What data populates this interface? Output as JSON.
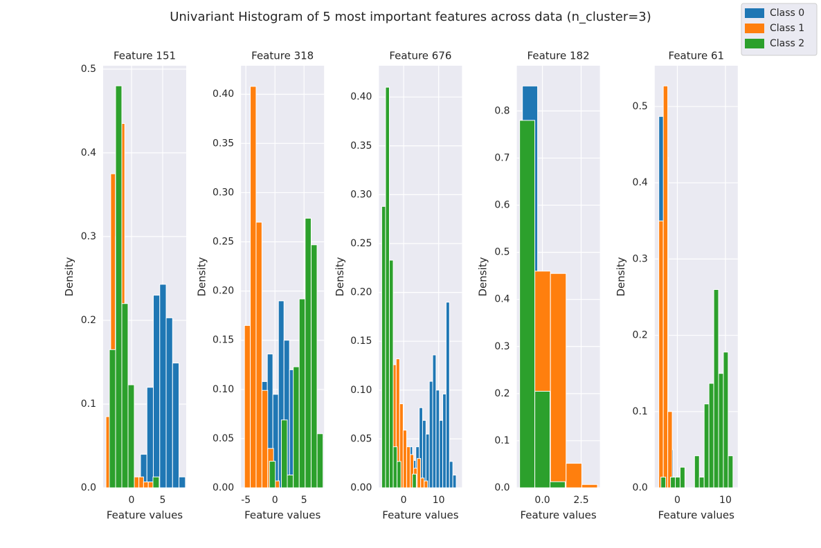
{
  "title": "Univariant Histogram of 5 most important features across data (n_cluster=3)",
  "chart_data": [
    {
      "type": "histogram",
      "title": "Feature 151",
      "xlabel": "Feature values",
      "ylabel": "Density",
      "xlim": [
        -4.56,
        8.78
      ],
      "ylim": [
        0,
        0.504
      ],
      "xticks": [
        0,
        5
      ],
      "yticks": [
        {
          "value": 0,
          "label": "0.0"
        },
        0.1,
        0.2,
        0.3,
        0.4,
        0.5
      ],
      "grid": true,
      "series": [
        {
          "name": "Class 0",
          "color": "#1f77b4",
          "bins": [
            1.44,
            2.47,
            3.5,
            4.53,
            5.56,
            6.59,
            7.62,
            8.65
          ],
          "values": [
            0.04,
            0.12,
            0.23,
            0.243,
            0.203,
            0.149,
            0.013
          ]
        },
        {
          "name": "Class 1",
          "color": "#ff7f0e",
          "bins": [
            -4.11,
            -3.35,
            -2.6,
            -1.84,
            -1.09,
            -0.33,
            0.42,
            1.18,
            1.93,
            2.69,
            3.44
          ],
          "values": [
            0.085,
            0.375,
            0.3,
            0.435,
            0.1,
            0,
            0.013,
            0.013,
            0.007,
            0.007
          ]
        },
        {
          "name": "Class 2",
          "color": "#2ca02c",
          "bins": [
            -3.56,
            -2.56,
            -1.56,
            -0.56,
            0.44,
            1.44,
            2.44,
            3.44,
            4.44,
            5.44,
            6.44
          ],
          "values": [
            0.165,
            0.48,
            0.22,
            0.123,
            0,
            0,
            0,
            0.013,
            0,
            0
          ]
        }
      ]
    },
    {
      "type": "histogram",
      "title": "Feature 318",
      "xlabel": "Feature values",
      "ylabel": "Density",
      "xlim": [
        -5.83,
        8.45
      ],
      "ylim": [
        0,
        0.429
      ],
      "xticks": [
        -5,
        0,
        5
      ],
      "yticks": [
        {
          "value": 0,
          "label": "0.00"
        },
        0.05,
        {
          "value": 0.1,
          "label": "0.10"
        },
        0.15,
        {
          "value": 0.2,
          "label": "0.20"
        },
        0.25,
        {
          "value": 0.3,
          "label": "0.30"
        },
        0.35,
        {
          "value": 0.4,
          "label": "0.40"
        }
      ],
      "grid": true,
      "series": [
        {
          "name": "Class 0",
          "color": "#1f77b4",
          "bins": [
            -2.26,
            -1.31,
            -0.36,
            0.6,
            1.55,
            2.5,
            3.45,
            4.4,
            5.36,
            6.31,
            7.26
          ],
          "values": [
            0.108,
            0.136,
            0.095,
            0.19,
            0.15,
            0.12,
            0.05,
            0.02,
            0.01,
            0.005
          ]
        },
        {
          "name": "Class 1",
          "color": "#ff7f0e",
          "bins": [
            -5.24,
            -4.24,
            -3.24,
            -2.24,
            -1.24,
            -0.24,
            0.76,
            1.76,
            2.76,
            3.76,
            4.76
          ],
          "values": [
            0.165,
            0.408,
            0.27,
            0.099,
            0.04,
            0.007,
            0,
            0,
            0,
            0
          ]
        },
        {
          "name": "Class 2",
          "color": "#2ca02c",
          "bins": [
            -0.95,
            0.07,
            1.1,
            2.12,
            3.15,
            4.17,
            5.19,
            6.22,
            7.24,
            8.27
          ],
          "values": [
            0.027,
            0,
            0.069,
            0.013,
            0.123,
            0.192,
            0.274,
            0.247,
            0.055
          ]
        }
      ]
    },
    {
      "type": "histogram",
      "title": "Feature 676",
      "xlabel": "Feature values",
      "ylabel": "Density",
      "xlim": [
        -7.06,
        16.67
      ],
      "ylim": [
        0,
        0.432
      ],
      "xticks": [
        0,
        10
      ],
      "yticks": [
        {
          "value": 0,
          "label": "0.00"
        },
        0.05,
        {
          "value": 0.1,
          "label": "0.10"
        },
        0.15,
        {
          "value": 0.2,
          "label": "0.20"
        },
        0.25,
        {
          "value": 0.3,
          "label": "0.30"
        },
        0.35,
        {
          "value": 0.4,
          "label": "0.40"
        }
      ],
      "grid": true,
      "series": [
        {
          "name": "Class 0",
          "color": "#1f77b4",
          "bins": [
            1.57,
            2.53,
            3.49,
            4.45,
            5.41,
            6.37,
            7.33,
            8.29,
            9.25,
            10.21,
            11.17,
            12.13,
            13.09,
            14.05,
            15.01
          ],
          "values": [
            0.042,
            0.028,
            0.042,
            0.082,
            0.069,
            0.055,
            0.109,
            0.136,
            0.1,
            0.069,
            0.096,
            0.19,
            0.027,
            0.013
          ]
        },
        {
          "name": "Class 1",
          "color": "#ff7f0e",
          "bins": [
            -3.14,
            -2.14,
            -1.14,
            -0.14,
            0.86,
            1.86,
            2.86,
            3.86,
            4.86,
            5.86,
            6.86
          ],
          "values": [
            0.126,
            0.132,
            0.086,
            0.059,
            0.042,
            0.034,
            0.02,
            0.03,
            0.01,
            0.007
          ]
        },
        {
          "name": "Class 2",
          "color": "#2ca02c",
          "bins": [
            -6.27,
            -5.17,
            -4.08,
            -2.98,
            -1.88,
            -0.78,
            0.31,
            1.41,
            2.51,
            3.61,
            4.71
          ],
          "values": [
            0.288,
            0.41,
            0.233,
            0.042,
            0.027,
            0,
            0,
            0,
            0.014,
            0
          ]
        }
      ]
    },
    {
      "type": "histogram",
      "title": "Feature 182",
      "xlabel": "Feature values",
      "ylabel": "Density",
      "xlim": [
        -1.65,
        3.71
      ],
      "ylim": [
        0,
        0.896
      ],
      "xticks": [
        {
          "value": 0,
          "label": "0.0"
        },
        2.5
      ],
      "yticks": [
        {
          "value": 0,
          "label": "0.0"
        },
        0.1,
        0.2,
        0.3,
        0.4,
        0.5,
        0.6,
        0.7,
        0.8
      ],
      "grid": true,
      "series": [
        {
          "name": "Class 0",
          "color": "#1f77b4",
          "bins": [
            -1.29,
            -0.31,
            0.67
          ],
          "values": [
            0.853,
            0.15
          ]
        },
        {
          "name": "Class 1",
          "color": "#ff7f0e",
          "bins": [
            -0.49,
            0.52,
            1.53,
            2.54,
            3.55
          ],
          "values": [
            0.46,
            0.455,
            0.052,
            0.007
          ]
        },
        {
          "name": "Class 2",
          "color": "#2ca02c",
          "bins": [
            -1.47,
            -0.49,
            0.49,
            1.47
          ],
          "values": [
            0.78,
            0.205,
            0.013
          ]
        }
      ]
    },
    {
      "type": "histogram",
      "title": "Feature 61",
      "xlabel": "Feature values",
      "ylabel": "Density",
      "xlim": [
        -4.71,
        12.57
      ],
      "ylim": [
        0,
        0.5535
      ],
      "xticks": [
        0,
        10
      ],
      "yticks": [
        {
          "value": 0,
          "label": "0.0"
        },
        0.1,
        0.2,
        0.3,
        0.4,
        0.5
      ],
      "grid": true,
      "series": [
        {
          "name": "Class 0",
          "color": "#1f77b4",
          "bins": [
            -3.86,
            -2.86,
            -1.86,
            -0.86
          ],
          "values": [
            0.487,
            0.433,
            0.05
          ]
        },
        {
          "name": "Class 1",
          "color": "#ff7f0e",
          "bins": [
            -3.86,
            -2.93,
            -2.0,
            -1.07
          ],
          "values": [
            0.35,
            0.527,
            0.1
          ]
        },
        {
          "name": "Class 2",
          "color": "#2ca02c",
          "bins": [
            -3.43,
            -2.43,
            -1.43,
            -0.43,
            0.57,
            1.57,
            2.57,
            3.57,
            4.57,
            5.57,
            6.57,
            7.57,
            8.57,
            9.57,
            10.57,
            11.57
          ],
          "values": [
            0.014,
            0,
            0.014,
            0.014,
            0.027,
            0,
            0,
            0.042,
            0.014,
            0.11,
            0.137,
            0.26,
            0.15,
            0.178,
            0.042
          ]
        }
      ]
    }
  ]
}
